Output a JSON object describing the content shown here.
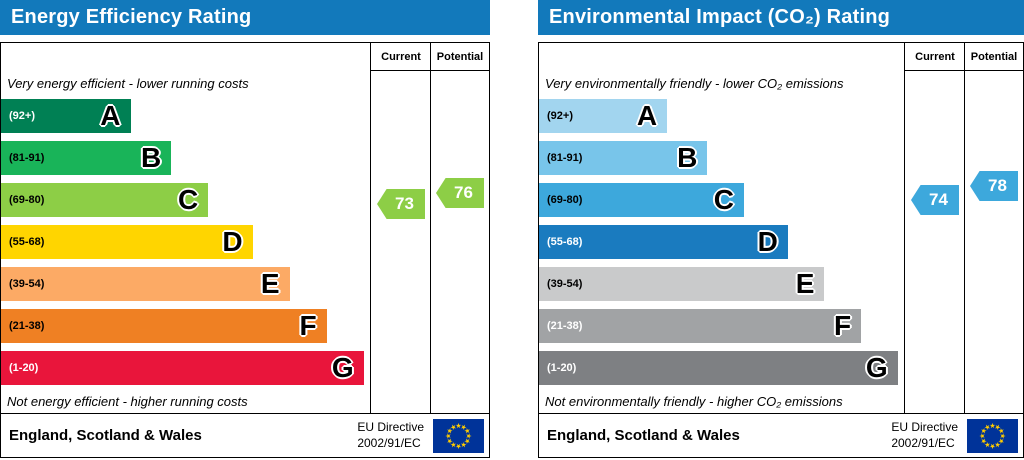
{
  "chart_data": [
    {
      "type": "bar",
      "key": "energy-efficiency",
      "title": "Energy Efficiency Rating",
      "header_color": "#1279bb",
      "columns": {
        "current": "Current",
        "potential": "Potential"
      },
      "top_note": "Very energy efficient - lower running costs",
      "bottom_note": "Not energy efficient - higher running costs",
      "bands": [
        {
          "letter": "A",
          "label": "(92+)",
          "min": 92,
          "max": 100,
          "width_pct": 35,
          "color": "#008054",
          "label_color": "#ffffff"
        },
        {
          "letter": "B",
          "label": "(81-91)",
          "min": 81,
          "max": 91,
          "width_pct": 46,
          "color": "#19b459",
          "label_color": "#000000"
        },
        {
          "letter": "C",
          "label": "(69-80)",
          "min": 69,
          "max": 80,
          "width_pct": 56,
          "color": "#8dce46",
          "label_color": "#000000"
        },
        {
          "letter": "D",
          "label": "(55-68)",
          "min": 55,
          "max": 68,
          "width_pct": 68,
          "color": "#ffd500",
          "label_color": "#000000"
        },
        {
          "letter": "E",
          "label": "(39-54)",
          "min": 39,
          "max": 54,
          "width_pct": 78,
          "color": "#fcaa65",
          "label_color": "#000000"
        },
        {
          "letter": "F",
          "label": "(21-38)",
          "min": 21,
          "max": 38,
          "width_pct": 88,
          "color": "#ef8023",
          "label_color": "#000000"
        },
        {
          "letter": "G",
          "label": "(1-20)",
          "min": 1,
          "max": 20,
          "width_pct": 98,
          "color": "#e9153b",
          "label_color": "#ffffff"
        }
      ],
      "current": {
        "value": 73,
        "band": "C",
        "color": "#8dce46"
      },
      "potential": {
        "value": 76,
        "band": "C",
        "color": "#8dce46"
      },
      "footer": {
        "region": "England, Scotland & Wales",
        "directive_line1": "EU Directive",
        "directive_line2": "2002/91/EC",
        "flag": {
          "background": "#003399",
          "stars": "#ffcc00"
        }
      }
    },
    {
      "type": "bar",
      "key": "environmental-impact-co2",
      "title": "Environmental Impact (CO₂) Rating",
      "header_color": "#1279bb",
      "columns": {
        "current": "Current",
        "potential": "Potential"
      },
      "top_note": "Very environmentally friendly - lower CO₂ emissions",
      "bottom_note": "Not environmentally friendly - higher CO₂ emissions",
      "bands": [
        {
          "letter": "A",
          "label": "(92+)",
          "min": 92,
          "max": 100,
          "width_pct": 35,
          "color": "#a2d5ef",
          "label_color": "#000000"
        },
        {
          "letter": "B",
          "label": "(81-91)",
          "min": 81,
          "max": 91,
          "width_pct": 46,
          "color": "#78c5ea",
          "label_color": "#000000"
        },
        {
          "letter": "C",
          "label": "(69-80)",
          "min": 69,
          "max": 80,
          "width_pct": 56,
          "color": "#3da8dc",
          "label_color": "#000000"
        },
        {
          "letter": "D",
          "label": "(55-68)",
          "min": 55,
          "max": 68,
          "width_pct": 68,
          "color": "#1a7bbf",
          "label_color": "#ffffff"
        },
        {
          "letter": "E",
          "label": "(39-54)",
          "min": 39,
          "max": 54,
          "width_pct": 78,
          "color": "#c9cacb",
          "label_color": "#000000"
        },
        {
          "letter": "F",
          "label": "(21-38)",
          "min": 21,
          "max": 38,
          "width_pct": 88,
          "color": "#a1a3a5",
          "label_color": "#ffffff"
        },
        {
          "letter": "G",
          "label": "(1-20)",
          "min": 1,
          "max": 20,
          "width_pct": 98,
          "color": "#7e8083",
          "label_color": "#ffffff"
        }
      ],
      "current": {
        "value": 74,
        "band": "C",
        "color": "#3da8dc"
      },
      "potential": {
        "value": 78,
        "band": "C",
        "color": "#3da8dc"
      },
      "footer": {
        "region": "England, Scotland & Wales",
        "directive_line1": "EU Directive",
        "directive_line2": "2002/91/EC",
        "flag": {
          "background": "#003399",
          "stars": "#ffcc00"
        }
      }
    }
  ]
}
